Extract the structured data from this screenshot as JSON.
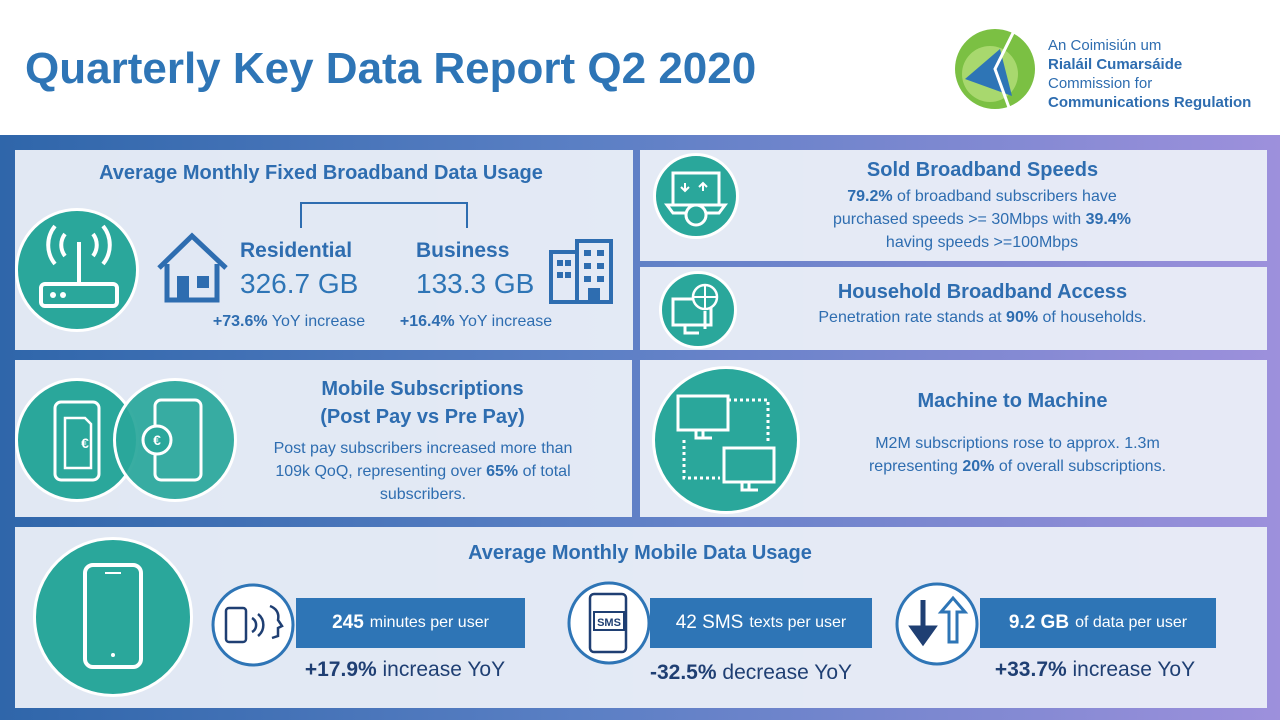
{
  "header": {
    "title": "Quarterly Key Data Report Q2 2020",
    "logo": {
      "line1": "An Coimisiún um",
      "line2": "Rialáil Cumarsáide",
      "line3": "Commission for",
      "line4": "Communications Regulation"
    }
  },
  "fixed_broadband": {
    "title": "Average Monthly Fixed Broadband Data Usage",
    "residential": {
      "label": "Residential",
      "value": "326.7 GB",
      "change": "+73.6%",
      "change_text": "YoY increase"
    },
    "business": {
      "label": "Business",
      "value": "133.3 GB",
      "change": "+16.4%",
      "change_text": "YoY increase"
    }
  },
  "sold_speeds": {
    "title": "Sold Broadband Speeds",
    "parts": [
      "79.2%",
      " of broadband subscribers have purchased speeds >= 30Mbps with ",
      "39.4%",
      " having speeds >=100Mbps"
    ]
  },
  "household_access": {
    "title": "Household Broadband Access",
    "parts": [
      "Penetration rate stands at ",
      "90%",
      " of households."
    ]
  },
  "mobile_subscriptions": {
    "title_line1": "Mobile Subscriptions",
    "title_line2": "(Post Pay vs Pre Pay)",
    "icon_symbol": "€",
    "parts": [
      "Post pay subscribers increased more than 109k QoQ, representing over ",
      "65%",
      " of total subscribers."
    ]
  },
  "m2m": {
    "title": "Machine to Machine",
    "parts": [
      "M2M subscriptions rose to approx. 1.3m representing ",
      "20%",
      " of overall subscriptions."
    ]
  },
  "mobile_data": {
    "title": "Average Monthly Mobile Data Usage",
    "sms_icon_text": "SMS",
    "items": [
      {
        "value": "245",
        "unit": "minutes per user",
        "change": "+17.9%",
        "change_text": "increase YoY"
      },
      {
        "value": "42 SMS",
        "unit": "texts per user",
        "change": "-32.5%",
        "change_text": "decrease YoY"
      },
      {
        "value": "9.2 GB",
        "unit": "of data per user",
        "change": "+33.7%",
        "change_text": "increase YoY"
      }
    ]
  }
}
